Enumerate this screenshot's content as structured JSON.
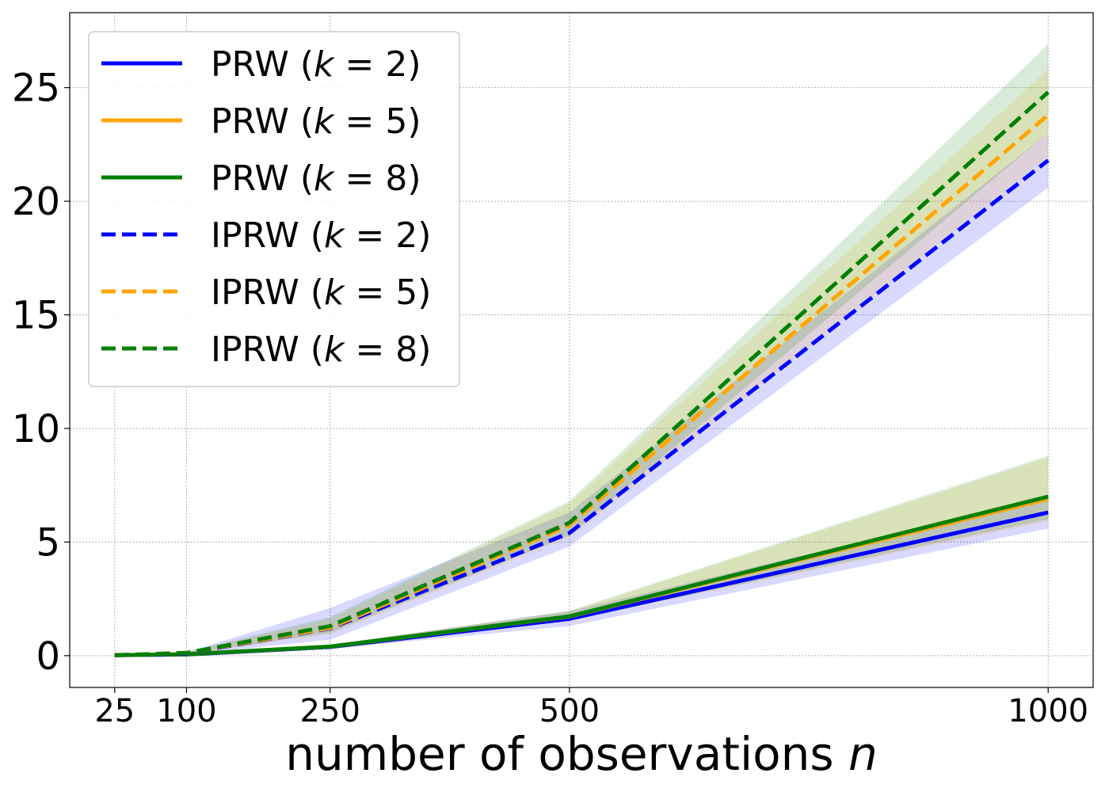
{
  "chart_data": {
    "type": "line",
    "title": "",
    "xlabel_text": "number of observations ",
    "xlabel_var": "n",
    "ylabel": "",
    "x": [
      25,
      100,
      250,
      500,
      1000
    ],
    "xticks": [
      "25",
      "100",
      "250",
      "500",
      "1000"
    ],
    "yticks": [
      "0",
      "5",
      "10",
      "15",
      "20",
      "25"
    ],
    "xlim": [
      -22,
      1047
    ],
    "ylim": [
      -1.4,
      28.3
    ],
    "grid": true,
    "legend_position": "top-left",
    "series": [
      {
        "name": "PRW",
        "k": "2",
        "color": "#0000ff",
        "dash": "solid",
        "values": [
          0.02,
          0.05,
          0.38,
          1.62,
          6.3
        ],
        "lower": [
          0.0,
          0.03,
          0.3,
          1.3,
          5.6
        ],
        "upper": [
          0.04,
          0.08,
          0.48,
          1.95,
          7.0
        ]
      },
      {
        "name": "PRW",
        "k": "5",
        "color": "#ffa500",
        "dash": "solid",
        "values": [
          0.02,
          0.06,
          0.4,
          1.72,
          6.9
        ],
        "lower": [
          0.0,
          0.04,
          0.33,
          1.55,
          5.9
        ],
        "upper": [
          0.04,
          0.09,
          0.48,
          1.95,
          8.7
        ]
      },
      {
        "name": "PRW",
        "k": "8",
        "color": "#008000",
        "dash": "solid",
        "values": [
          0.02,
          0.06,
          0.4,
          1.73,
          7.0
        ],
        "lower": [
          0.0,
          0.04,
          0.33,
          1.55,
          6.0
        ],
        "upper": [
          0.04,
          0.09,
          0.48,
          1.98,
          8.8
        ]
      },
      {
        "name": "IPRW",
        "k": "2",
        "color": "#0000ff",
        "dash": "dashed",
        "values": [
          0.02,
          0.1,
          1.2,
          5.4,
          21.8
        ],
        "lower": [
          0.0,
          0.05,
          0.7,
          4.8,
          20.6
        ],
        "upper": [
          0.05,
          0.15,
          2.1,
          6.3,
          23.0
        ]
      },
      {
        "name": "IPRW",
        "k": "5",
        "color": "#ffa500",
        "dash": "dashed",
        "values": [
          0.02,
          0.12,
          1.22,
          5.75,
          23.8
        ],
        "lower": [
          0.0,
          0.07,
          0.95,
          5.2,
          22.0
        ],
        "upper": [
          0.05,
          0.17,
          1.6,
          6.7,
          25.8
        ]
      },
      {
        "name": "IPRW",
        "k": "8",
        "color": "#008000",
        "dash": "dashed",
        "values": [
          0.02,
          0.12,
          1.3,
          5.85,
          24.8
        ],
        "lower": [
          0.0,
          0.07,
          1.0,
          5.3,
          23.0
        ],
        "upper": [
          0.05,
          0.17,
          1.7,
          6.8,
          26.9
        ]
      }
    ]
  }
}
